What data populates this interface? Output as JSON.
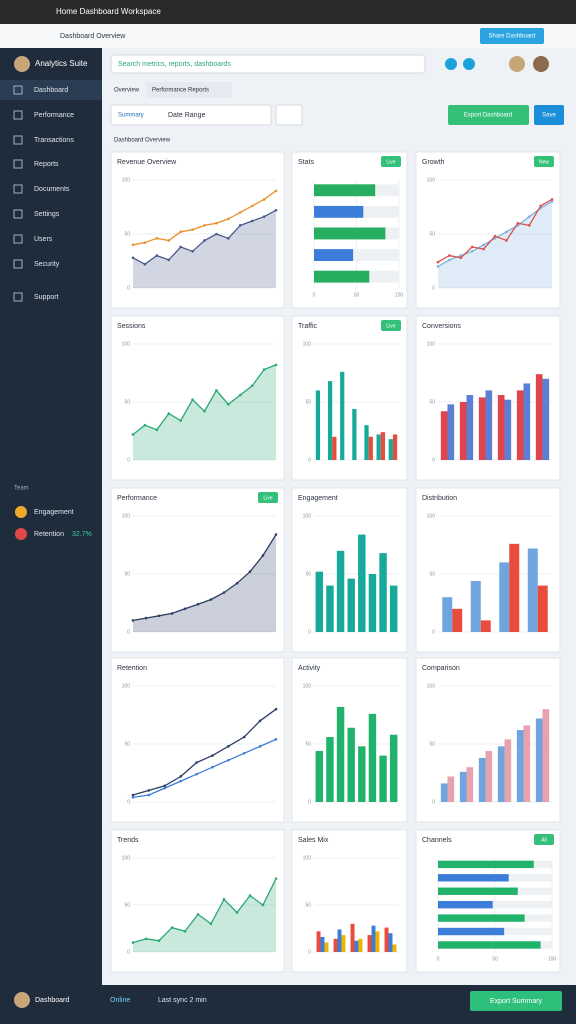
{
  "browser": {
    "title": "Home Dashboard Workspace",
    "tab": "Dashboard Overview",
    "button": "Share Dashboard"
  },
  "sidebar": {
    "brand": "Analytics Suite",
    "items": [
      "Dashboard",
      "Performance",
      "Transactions",
      "Reports",
      "Documents",
      "Settings",
      "Users",
      "Security",
      "Support"
    ],
    "section": "Team",
    "users": [
      {
        "name": "Engagement"
      },
      {
        "name": "Retention",
        "value": "32.7%"
      }
    ]
  },
  "header": {
    "search": "Search metrics, reports, dashboards"
  },
  "tabs": [
    "Overview",
    "Performance Reports"
  ],
  "filters": {
    "tab": "Summary",
    "select": "Date Range",
    "button": "Export Dashboard",
    "save": "Save"
  },
  "section": "Dashboard Overview",
  "cards": [
    {
      "title": "Revenue Overview",
      "type": "area",
      "ylim": [
        0,
        100
      ],
      "yticks": [
        0,
        50,
        100
      ],
      "series": [
        {
          "color": "#4a5a8c",
          "values": [
            28,
            22,
            30,
            26,
            38,
            34,
            44,
            50,
            46,
            58,
            62,
            66,
            72
          ]
        },
        {
          "color": "#e8912d",
          "values": [
            40,
            42,
            46,
            44,
            52,
            54,
            58,
            60,
            64,
            70,
            76,
            82,
            90
          ]
        }
      ]
    },
    {
      "title": "Stats",
      "badge": "Live",
      "type": "hbar",
      "ylim": [
        0,
        100
      ],
      "yticks": [
        0,
        50,
        100
      ],
      "series": [
        {
          "color": "#27ae60",
          "values": [
            72,
            58,
            84,
            46,
            65
          ]
        }
      ]
    },
    {
      "title": "Growth",
      "badge": "New",
      "type": "area",
      "ylim": [
        0,
        100
      ],
      "yticks": [
        0,
        50,
        100
      ],
      "series": [
        {
          "color": "#7fb3e0",
          "values": [
            20,
            26,
            30,
            34,
            40,
            46,
            52,
            58,
            66,
            74,
            80
          ]
        },
        {
          "color": "#d9534f",
          "values": [
            24,
            30,
            28,
            38,
            36,
            48,
            44,
            60,
            58,
            76,
            82
          ]
        }
      ]
    },
    {
      "title": "Sessions",
      "type": "area",
      "ylim": [
        0,
        100
      ],
      "yticks": [
        0,
        50,
        100
      ],
      "series": [
        {
          "color": "#2aa876",
          "values": [
            22,
            30,
            26,
            40,
            34,
            52,
            42,
            60,
            48,
            56,
            64,
            78,
            82
          ]
        }
      ]
    },
    {
      "title": "Traffic",
      "badge": "Live",
      "type": "bar",
      "ylim": [
        0,
        100
      ],
      "yticks": [
        0,
        50,
        100
      ],
      "series": [
        {
          "color": "#17a99a",
          "values": [
            60,
            68,
            76,
            44,
            30,
            22,
            18
          ]
        },
        {
          "color": "#e74c3c",
          "values": [
            0,
            20,
            0,
            0,
            20,
            24,
            22
          ]
        }
      ]
    },
    {
      "title": "Conversions",
      "type": "bar",
      "ylim": [
        0,
        100
      ],
      "yticks": [
        0,
        50,
        100
      ],
      "series": [
        {
          "color": "#e0454e",
          "values": [
            42,
            50,
            54,
            56,
            60,
            74
          ]
        },
        {
          "color": "#5b7fd5",
          "values": [
            48,
            56,
            60,
            52,
            66,
            70
          ]
        }
      ]
    },
    {
      "title": "Performance",
      "badge": "Live",
      "type": "area",
      "ylim": [
        0,
        100
      ],
      "yticks": [
        0,
        50,
        100
      ],
      "series": [
        {
          "color": "#2c3e66",
          "values": [
            10,
            12,
            14,
            16,
            20,
            24,
            28,
            34,
            42,
            52,
            66,
            84
          ]
        }
      ]
    },
    {
      "title": "Engagement",
      "type": "bar",
      "ylim": [
        0,
        100
      ],
      "yticks": [
        0,
        50,
        100
      ],
      "series": [
        {
          "color": "#17a99a",
          "values": [
            52,
            40,
            70,
            46,
            84,
            50,
            68,
            40
          ]
        }
      ]
    },
    {
      "title": "Distribution",
      "type": "bar",
      "ylim": [
        0,
        100
      ],
      "yticks": [
        0,
        50,
        100
      ],
      "series": [
        {
          "color": "#6fa4de",
          "values": [
            30,
            44,
            60,
            72
          ]
        },
        {
          "color": "#e74c3c",
          "values": [
            20,
            10,
            76,
            40
          ]
        }
      ]
    },
    {
      "title": "Retention",
      "type": "line",
      "ylim": [
        0,
        100
      ],
      "yticks": [
        0,
        50,
        100
      ],
      "series": [
        {
          "color": "#2c3e66",
          "values": [
            6,
            10,
            14,
            22,
            34,
            40,
            48,
            56,
            70,
            80
          ]
        },
        {
          "color": "#3b7dd8",
          "values": [
            4,
            6,
            12,
            18,
            24,
            30,
            36,
            42,
            48,
            54
          ]
        }
      ]
    },
    {
      "title": "Activity",
      "type": "bar",
      "ylim": [
        0,
        100
      ],
      "yticks": [
        0,
        50,
        100
      ],
      "series": [
        {
          "color": "#21b36b",
          "values": [
            44,
            56,
            82,
            64,
            48,
            76,
            40,
            58
          ]
        }
      ]
    },
    {
      "title": "Comparison",
      "type": "bar",
      "ylim": [
        0,
        100
      ],
      "yticks": [
        0,
        50,
        100
      ],
      "series": [
        {
          "color": "#6fa4de",
          "values": [
            16,
            26,
            38,
            48,
            62,
            72
          ]
        },
        {
          "color": "#e6a3ad",
          "values": [
            22,
            30,
            44,
            54,
            66,
            80
          ]
        }
      ]
    },
    {
      "title": "Trends",
      "type": "area",
      "ylim": [
        0,
        100
      ],
      "yticks": [
        0,
        50,
        100
      ],
      "series": [
        {
          "color": "#2aa876",
          "values": [
            10,
            14,
            12,
            26,
            22,
            40,
            30,
            56,
            42,
            60,
            50,
            78
          ]
        }
      ]
    },
    {
      "title": "Sales Mix",
      "type": "bar",
      "ylim": [
        0,
        100
      ],
      "yticks": [
        0,
        50,
        100
      ],
      "series": [
        {
          "color": "#e74c3c",
          "values": [
            22,
            14,
            30,
            18,
            26
          ]
        },
        {
          "color": "#3b7dd8",
          "values": [
            16,
            24,
            12,
            28,
            20
          ]
        },
        {
          "color": "#f0b400",
          "values": [
            10,
            18,
            14,
            22,
            8
          ]
        }
      ]
    },
    {
      "title": "Channels",
      "badge": "All",
      "type": "hbar",
      "ylim": [
        0,
        100
      ],
      "yticks": [
        0,
        50,
        100
      ],
      "series": [
        {
          "color": "#21b36b",
          "values": [
            84,
            62,
            70,
            48,
            76,
            58,
            90
          ]
        }
      ]
    }
  ],
  "footer": {
    "user": "Dashboard",
    "status": "Online",
    "note": "Last sync 2 min",
    "button": "Export Summary"
  }
}
